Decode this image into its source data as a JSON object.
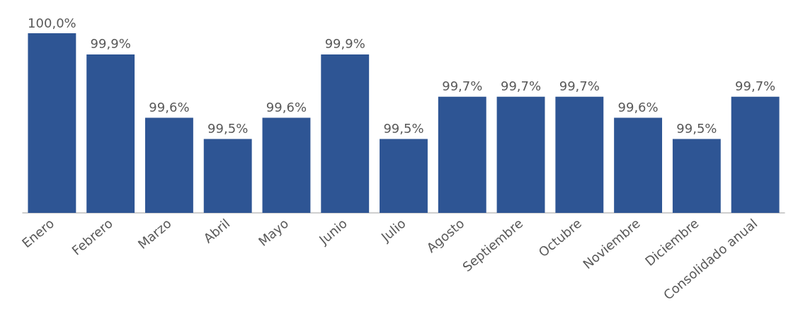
{
  "chart_data": {
    "type": "bar",
    "categories": [
      "Enero",
      "Febrero",
      "Marzo",
      "Abril",
      "Mayo",
      "Junio",
      "Julio",
      "Agosto",
      "Septiembre",
      "Octubre",
      "Noviembre",
      "Diciembre",
      "Consolidado anual"
    ],
    "values": [
      100.0,
      99.9,
      99.6,
      99.5,
      99.6,
      99.9,
      99.5,
      99.7,
      99.7,
      99.7,
      99.6,
      99.5,
      99.7
    ],
    "value_labels": [
      "100,0%",
      "99,9%",
      "99,6%",
      "99,5%",
      "99,6%",
      "99,9%",
      "99,5%",
      "99,7%",
      "99,7%",
      "99,7%",
      "99,6%",
      "99,5%",
      "99,7%"
    ],
    "color": "#2e5594",
    "ylim": [
      99.15,
      100.0
    ],
    "tick_labels": "x",
    "grid": false
  }
}
